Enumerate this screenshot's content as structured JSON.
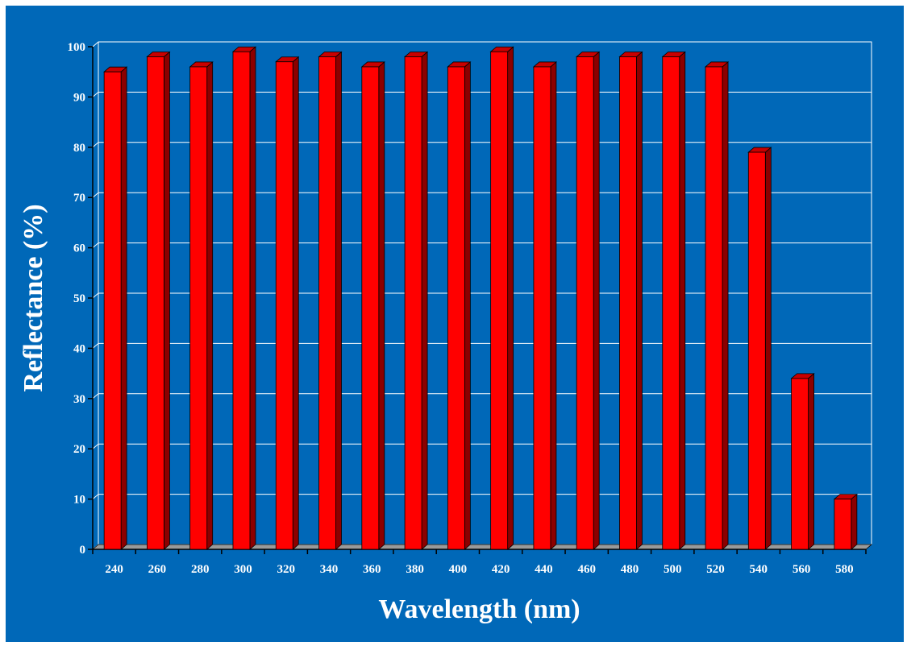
{
  "colors": {
    "background": "#0068B8",
    "bar_face": "#FF0000",
    "bar_side": "#8C0000",
    "bar_top": "#C80000",
    "grid": "#FFFFFF",
    "floor": "#9A9A9A"
  },
  "chart_data": {
    "type": "bar",
    "title": "",
    "xlabel": "Wavelength (nm)",
    "ylabel": "Reflectance (%)",
    "categories": [
      "240",
      "260",
      "280",
      "300",
      "320",
      "340",
      "360",
      "380",
      "400",
      "420",
      "440",
      "460",
      "480",
      "500",
      "520",
      "540",
      "560",
      "580"
    ],
    "values": [
      95,
      98,
      96,
      99,
      97,
      98,
      96,
      98,
      96,
      99,
      96,
      98,
      98,
      98,
      96,
      79,
      34,
      10
    ],
    "ylim": [
      0,
      100
    ],
    "yticks": [
      0,
      10,
      20,
      30,
      40,
      50,
      60,
      70,
      80,
      90,
      100
    ],
    "grid": true,
    "legend": "none",
    "style": "3d-bars"
  }
}
